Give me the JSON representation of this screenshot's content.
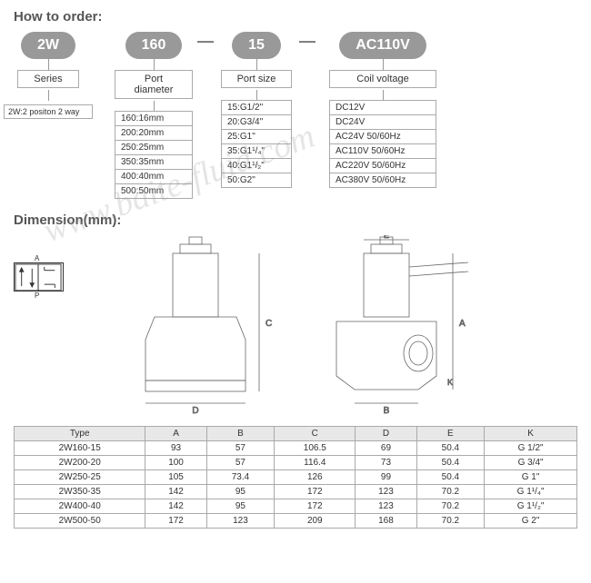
{
  "titles": {
    "order": "How to order:",
    "dimension": "Dimension(mm):"
  },
  "ex": {
    "series": "2W",
    "port_dia": "160",
    "port_size": "15",
    "voltage": "AC110V",
    "dash": "—"
  },
  "labels": {
    "series": "Series",
    "port_dia": "Port diameter",
    "port_size": "Port size",
    "voltage": "Coil voltage"
  },
  "series_note": "2W:2 positon 2 way",
  "port_dia": [
    "160:16mm",
    "200:20mm",
    "250:25mm",
    "350:35mm",
    "400:40mm",
    "500:50mm"
  ],
  "port_size": [
    "15:G1/2\"",
    "20:G3/4\"",
    "25:G1\"",
    "35:G1¹/₄\"",
    "40:G1¹/₂\"",
    "50:G2\""
  ],
  "voltage": [
    "DC12V",
    "DC24V",
    "AC24V    50/60Hz",
    "AC110V  50/60Hz",
    "AC220V  50/60Hz",
    "AC380V  50/60Hz"
  ],
  "schematic": {
    "a": "A",
    "p": "P"
  },
  "table": {
    "headers": [
      "Type",
      "A",
      "B",
      "C",
      "D",
      "E",
      "K"
    ],
    "rows": [
      [
        "2W160-15",
        "93",
        "57",
        "106.5",
        "69",
        "50.4",
        "G 1/2\""
      ],
      [
        "2W200-20",
        "100",
        "57",
        "116.4",
        "73",
        "50.4",
        "G 3/4\""
      ],
      [
        "2W250-25",
        "105",
        "73.4",
        "126",
        "99",
        "50.4",
        "G 1\""
      ],
      [
        "2W350-35",
        "142",
        "95",
        "172",
        "123",
        "70.2",
        "G 1¹/₄\""
      ],
      [
        "2W400-40",
        "142",
        "95",
        "172",
        "123",
        "70.2",
        "G 1¹/₂\""
      ],
      [
        "2W500-50",
        "172",
        "123",
        "209",
        "168",
        "70.2",
        "G 2\""
      ]
    ]
  },
  "watermark": "www.baite-fluid.com",
  "colors": {
    "pill_bg": "#999999",
    "pill_fg": "#ffffff",
    "border": "#aaaaaa",
    "header_bg": "#e8e8e8"
  }
}
